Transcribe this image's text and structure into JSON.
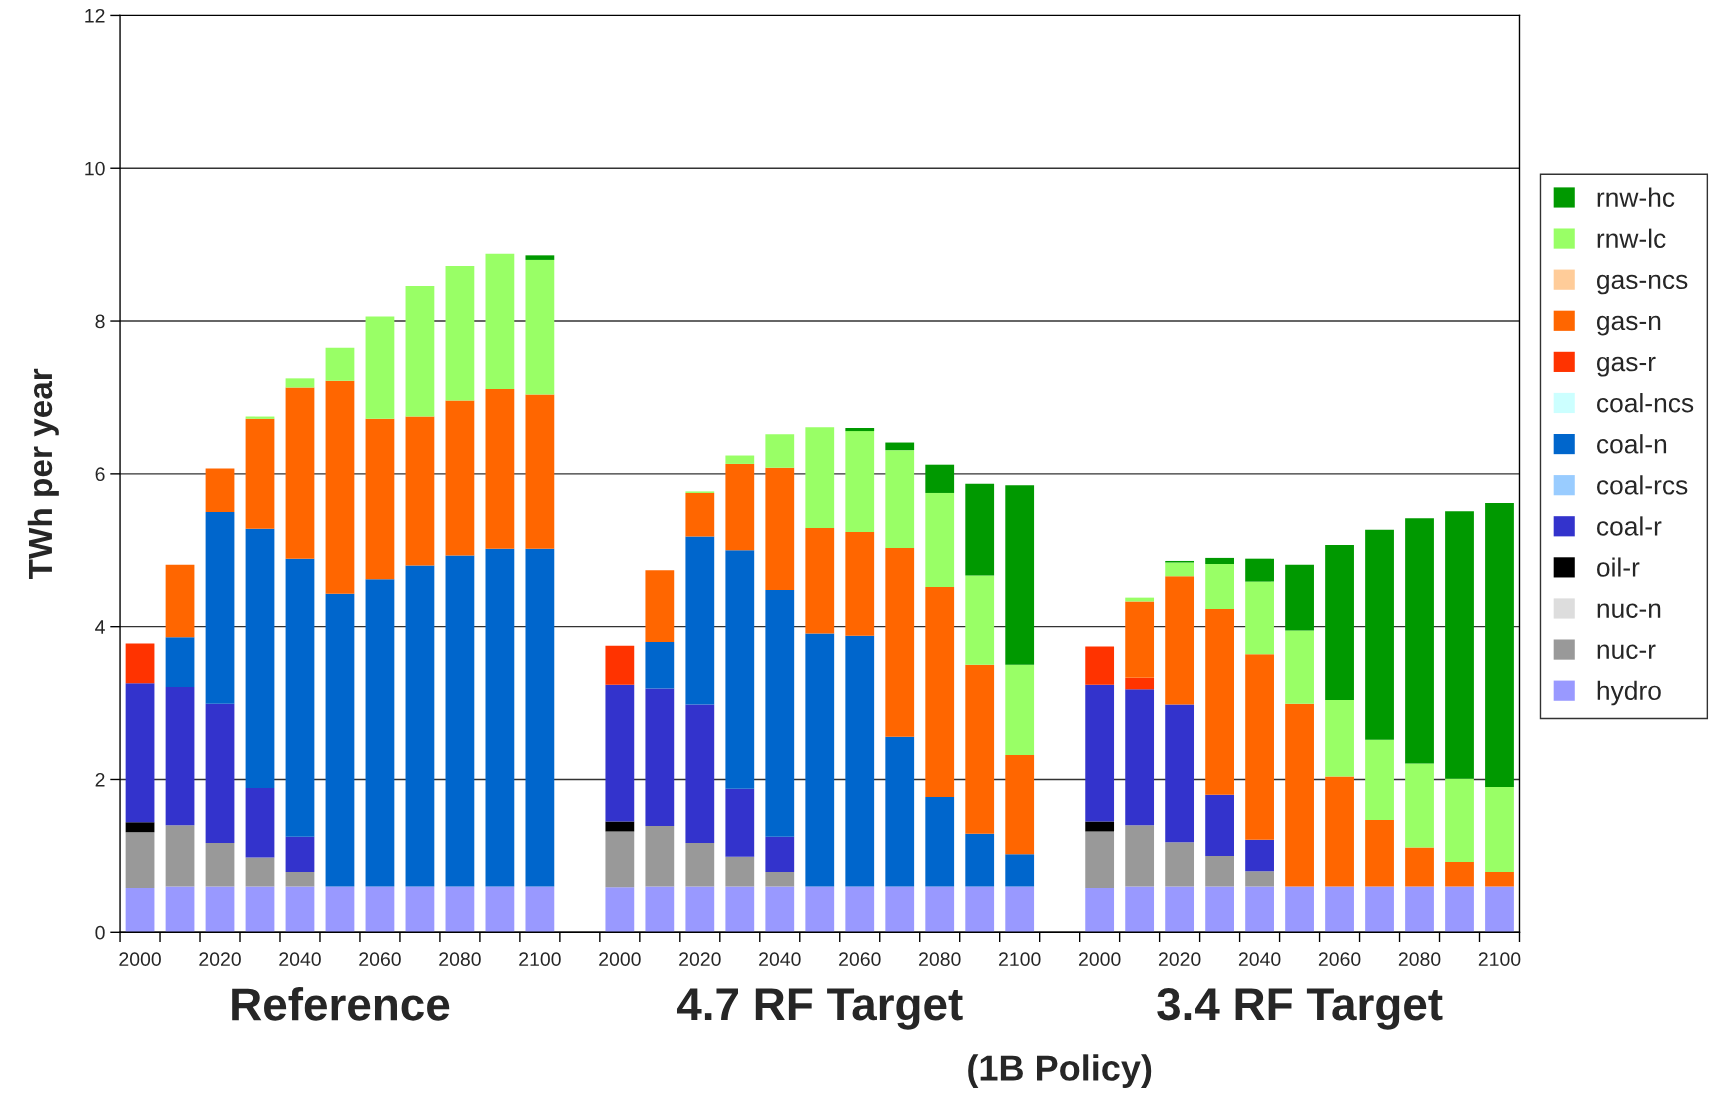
{
  "chart_data": {
    "type": "bar",
    "stacked": true,
    "ylabel": "TWh per year",
    "categories": [
      "2000",
      null,
      "2020",
      null,
      "2040",
      null,
      "2060",
      null,
      "2080",
      null,
      "2100",
      null,
      "2000",
      null,
      "2020",
      null,
      "2040",
      null,
      "2060",
      null,
      "2080",
      null,
      "2100",
      null,
      "2000",
      null,
      "2020",
      null,
      "2040",
      null,
      "2060",
      null,
      "2080",
      null,
      "2100"
    ],
    "ylim": [
      0,
      12
    ],
    "yticks": [
      0,
      2,
      4,
      6,
      8,
      10,
      12
    ],
    "grid": "y",
    "legend": "right",
    "annotations": [
      "Reference",
      "4.7 RF Target",
      "3.4 RF Target",
      "(1B Policy)"
    ],
    "series": [
      {
        "name": "hydro",
        "color": "#9999ff",
        "values": [
          0.58,
          0.6,
          0.6,
          0.6,
          0.6,
          0.6,
          0.6,
          0.6,
          0.6,
          0.6,
          0.6,
          null,
          0.59,
          0.6,
          0.6,
          0.6,
          0.6,
          0.6,
          0.6,
          0.6,
          0.6,
          0.6,
          0.6,
          null,
          0.58,
          0.6,
          0.6,
          0.6,
          0.6,
          0.6,
          0.6,
          0.6,
          0.6,
          0.6,
          0.6
        ]
      },
      {
        "name": "nuc-r",
        "color": "#999999",
        "values": [
          0.73,
          0.8,
          0.57,
          0.38,
          0.19,
          null,
          null,
          null,
          null,
          null,
          null,
          null,
          0.73,
          0.79,
          0.57,
          0.39,
          0.19,
          null,
          null,
          null,
          null,
          null,
          null,
          null,
          0.74,
          0.8,
          0.58,
          0.4,
          0.2,
          null,
          null,
          null,
          null,
          null,
          null
        ]
      },
      {
        "name": "nuc-n",
        "color": "#dddddd",
        "values": [
          null,
          null,
          null,
          null,
          null,
          null,
          null,
          null,
          null,
          null,
          null,
          null,
          null,
          null,
          null,
          null,
          null,
          null,
          null,
          null,
          null,
          null,
          null,
          null,
          null,
          null,
          null,
          null,
          null,
          null,
          null,
          null,
          null,
          null,
          null
        ]
      },
      {
        "name": "oil-r",
        "color": "#000000",
        "values": [
          0.13,
          null,
          null,
          null,
          null,
          null,
          null,
          null,
          null,
          null,
          null,
          null,
          0.13,
          null,
          null,
          null,
          null,
          null,
          null,
          null,
          null,
          null,
          null,
          null,
          0.13,
          null,
          null,
          null,
          null,
          null,
          null,
          null,
          null,
          null,
          null
        ]
      },
      {
        "name": "coal-r",
        "color": "#3333cc",
        "values": [
          1.82,
          1.81,
          1.82,
          0.91,
          0.46,
          null,
          null,
          null,
          null,
          null,
          null,
          null,
          1.79,
          1.8,
          1.81,
          0.89,
          0.46,
          null,
          null,
          null,
          null,
          null,
          null,
          null,
          1.79,
          1.78,
          1.8,
          0.8,
          0.41,
          null,
          null,
          null,
          null,
          null,
          null
        ]
      },
      {
        "name": "coal-rcs",
        "color": "#99ccff",
        "values": [
          null,
          null,
          null,
          null,
          null,
          null,
          null,
          null,
          null,
          null,
          null,
          null,
          null,
          null,
          null,
          null,
          null,
          null,
          null,
          null,
          null,
          null,
          null,
          null,
          null,
          null,
          null,
          null,
          null,
          null,
          null,
          null,
          null,
          null,
          null
        ]
      },
      {
        "name": "coal-n",
        "color": "#0066cc",
        "values": [
          null,
          0.65,
          2.51,
          3.39,
          3.64,
          3.83,
          4.02,
          4.2,
          4.33,
          4.42,
          4.42,
          null,
          null,
          0.61,
          2.2,
          3.12,
          3.23,
          3.31,
          3.28,
          1.96,
          1.17,
          0.69,
          0.42,
          null,
          null,
          null,
          null,
          null,
          null,
          null,
          null,
          null,
          null,
          null,
          null
        ]
      },
      {
        "name": "coal-ncs",
        "color": "#ccffff",
        "values": [
          null,
          null,
          null,
          null,
          null,
          null,
          null,
          null,
          null,
          null,
          null,
          null,
          null,
          null,
          null,
          null,
          null,
          null,
          null,
          null,
          null,
          null,
          null,
          null,
          null,
          null,
          null,
          null,
          null,
          null,
          null,
          null,
          null,
          null,
          null
        ]
      },
      {
        "name": "gas-r",
        "color": "#ff3300",
        "values": [
          0.52,
          null,
          null,
          null,
          null,
          null,
          null,
          null,
          null,
          null,
          null,
          null,
          0.51,
          null,
          null,
          null,
          null,
          null,
          null,
          null,
          null,
          null,
          null,
          null,
          0.5,
          0.15,
          null,
          null,
          null,
          null,
          null,
          null,
          null,
          null,
          null
        ]
      },
      {
        "name": "gas-n",
        "color": "#ff6600",
        "values": [
          null,
          0.95,
          0.57,
          1.44,
          2.24,
          2.79,
          2.1,
          1.95,
          2.03,
          2.09,
          2.02,
          null,
          null,
          0.94,
          0.57,
          1.13,
          1.6,
          1.38,
          1.36,
          2.47,
          2.75,
          2.21,
          1.3,
          null,
          null,
          1.0,
          1.68,
          2.43,
          2.43,
          2.39,
          1.44,
          0.87,
          0.51,
          0.32,
          0.19
        ]
      },
      {
        "name": "gas-ncs",
        "color": "#ffcc99",
        "values": [
          null,
          null,
          null,
          null,
          null,
          null,
          null,
          null,
          null,
          null,
          null,
          null,
          null,
          null,
          null,
          null,
          null,
          null,
          null,
          null,
          null,
          null,
          null,
          null,
          null,
          null,
          null,
          null,
          null,
          null,
          null,
          null,
          null,
          null,
          null
        ]
      },
      {
        "name": "rnw-lc",
        "color": "#99ff66",
        "values": [
          null,
          null,
          null,
          0.03,
          0.12,
          0.43,
          1.34,
          1.71,
          1.76,
          1.77,
          1.76,
          null,
          null,
          null,
          0.02,
          0.11,
          0.44,
          1.32,
          1.32,
          1.28,
          1.23,
          1.17,
          1.18,
          null,
          null,
          0.05,
          0.18,
          0.59,
          0.95,
          0.96,
          1.0,
          1.05,
          1.1,
          1.09,
          1.11
        ]
      },
      {
        "name": "rnw-hc",
        "color": "#009900",
        "values": [
          null,
          null,
          null,
          null,
          null,
          null,
          null,
          null,
          null,
          null,
          0.06,
          null,
          null,
          null,
          null,
          null,
          null,
          null,
          0.04,
          0.1,
          0.37,
          1.2,
          2.35,
          null,
          null,
          null,
          0.02,
          0.08,
          0.3,
          0.86,
          2.03,
          2.75,
          3.21,
          3.5,
          3.72
        ]
      }
    ]
  }
}
